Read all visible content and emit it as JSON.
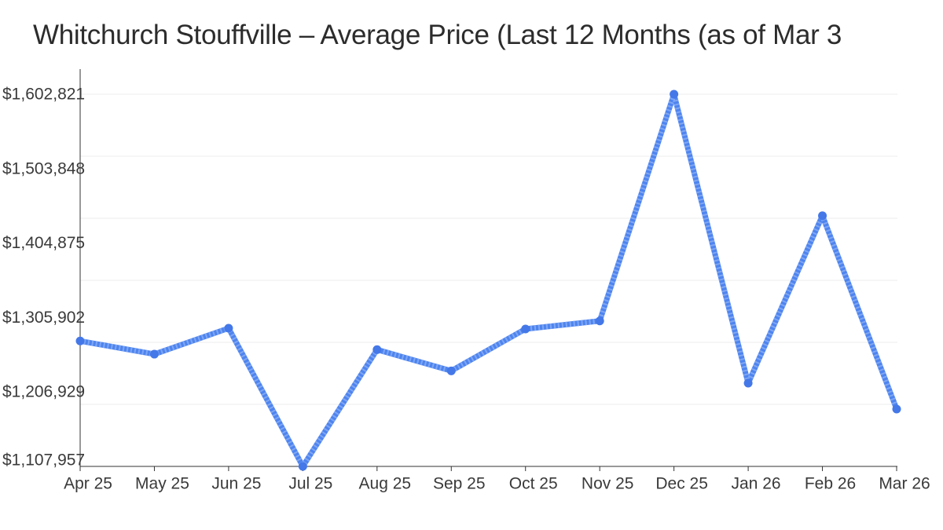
{
  "page": {
    "background": "#ffffff"
  },
  "header": {
    "title": "Whitchurch Stouffville – Average Price (Last 12 Months (as of Mar 3"
  },
  "colors": {
    "title": "#2c2c2c",
    "axis": "#333333",
    "tick_label": "#3a3a3a",
    "gridline": "#ececec",
    "line": "#4e84ee",
    "line_hatch": "#7ea6f4",
    "point": "#4478e8",
    "background": "#ffffff"
  },
  "chart_data": {
    "type": "line",
    "title": "Whitchurch Stouffville – Average Price (Last 12 Months (as of Mar 3",
    "xlabel": "",
    "ylabel": "",
    "categories": [
      "Apr 25",
      "May 25",
      "Jun 25",
      "Jul 25",
      "Aug 25",
      "Sep 25",
      "Oct 25",
      "Nov 25",
      "Dec 25",
      "Jan 26",
      "Feb 26",
      "Mar 26"
    ],
    "series": [
      {
        "name": "Average Price",
        "values": [
          1274700,
          1257200,
          1291700,
          1107957,
          1263200,
          1235000,
          1290700,
          1301400,
          1602821,
          1218600,
          1441300,
          1184200
        ]
      }
    ],
    "ytick_labels": [
      "$1,602,821",
      "$1,503,848",
      "$1,404,875",
      "$1,305,902",
      "$1,206,929",
      "$1,107,957"
    ],
    "ytick_values": [
      1602821,
      1503848,
      1404875,
      1305902,
      1206929,
      1107957
    ],
    "ylim": [
      1107957,
      1602821
    ],
    "grid": "horizontal",
    "legend": "none",
    "marker": "circle",
    "line_texture": "hatched"
  }
}
